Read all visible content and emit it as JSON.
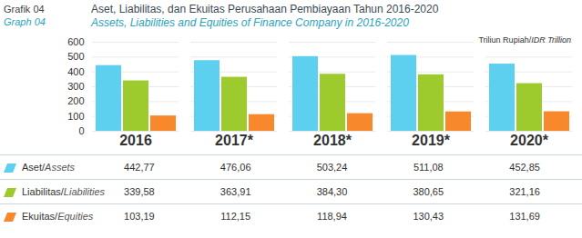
{
  "chart_data": {
    "type": "bar",
    "figure_number": [
      "Grafik 04",
      "Graph 04"
    ],
    "title": "Aset, Liabilitas, dan Ekuitas Perusahaan Pembiayaan Tahun 2016-2020",
    "subtitle": "Assets, Liabilities and Equities of Finance Company in 2016-2020",
    "ylabel": "Triliun Rupiah/IDR Trillion",
    "categories": [
      "2016",
      "2017*",
      "2018*",
      "2019*",
      "2020*"
    ],
    "series": [
      {
        "name": "Aset/Assets",
        "color": "#5dd0ef",
        "values": [
          442.77,
          476.06,
          503.24,
          511.08,
          452.85
        ],
        "value_labels": [
          "442,77",
          "476,06",
          "503,24",
          "511,08",
          "452,85"
        ]
      },
      {
        "name": "Liabilitas/Liabilities",
        "color": "#9dcb2e",
        "values": [
          339.58,
          363.91,
          384.3,
          380.65,
          321.16
        ],
        "value_labels": [
          "339,58",
          "363,91",
          "384,30",
          "380,65",
          "321,16"
        ]
      },
      {
        "name": "Ekuitas/Equities",
        "color": "#f7882c",
        "values": [
          103.19,
          112.15,
          118.94,
          130.43,
          131.69
        ],
        "value_labels": [
          "103,19",
          "112,15",
          "118,94",
          "130,43",
          "131,69"
        ]
      }
    ],
    "ylim": [
      0,
      600
    ],
    "yticks": [
      0,
      100,
      200,
      300,
      400,
      500,
      600
    ],
    "grid": true
  }
}
